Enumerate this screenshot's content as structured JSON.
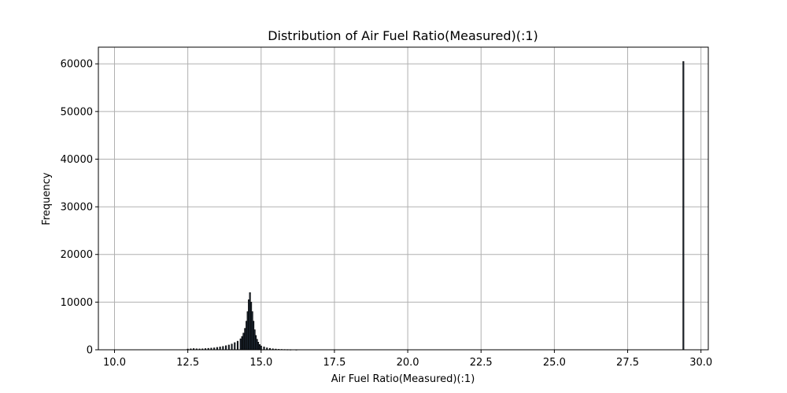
{
  "chart_data": {
    "type": "bar",
    "title": "Distribution of Air Fuel Ratio(Measured)(:1)",
    "xlabel": "Air Fuel Ratio(Measured)(:1)",
    "ylabel": "Frequency",
    "xlim": [
      9.45,
      30.25
    ],
    "ylim": [
      0,
      63500
    ],
    "xticks": [
      10.0,
      12.5,
      15.0,
      17.5,
      20.0,
      22.5,
      25.0,
      27.5,
      30.0
    ],
    "xtick_labels": [
      "10.0",
      "12.5",
      "15.0",
      "17.5",
      "20.0",
      "22.5",
      "25.0",
      "27.5",
      "30.0"
    ],
    "yticks": [
      0,
      10000,
      20000,
      30000,
      40000,
      50000,
      60000
    ],
    "ytick_labels": [
      "0",
      "10000",
      "20000",
      "30000",
      "40000",
      "50000",
      "60000"
    ],
    "grid": true,
    "bar_color": "#1f2a36",
    "bin_width": 0.04,
    "x": [
      12.5,
      12.6,
      12.7,
      12.8,
      12.9,
      13.0,
      13.1,
      13.2,
      13.3,
      13.4,
      13.5,
      13.6,
      13.7,
      13.8,
      13.9,
      14.0,
      14.1,
      14.2,
      14.3,
      14.35,
      14.4,
      14.45,
      14.5,
      14.54,
      14.58,
      14.62,
      14.66,
      14.7,
      14.74,
      14.78,
      14.82,
      14.86,
      14.9,
      14.95,
      15.0,
      15.1,
      15.2,
      15.3,
      15.4,
      15.5,
      15.6,
      15.7,
      15.8,
      15.9,
      16.0,
      16.2,
      29.4
    ],
    "values": [
      150,
      200,
      250,
      200,
      180,
      200,
      250,
      300,
      350,
      400,
      500,
      600,
      700,
      850,
      1000,
      1200,
      1500,
      1800,
      2300,
      2800,
      3500,
      4500,
      6000,
      8000,
      10500,
      12000,
      10000,
      8000,
      6000,
      4200,
      3000,
      2200,
      1600,
      1100,
      800,
      600,
      400,
      300,
      200,
      150,
      100,
      80,
      60,
      50,
      40,
      30,
      60500
    ]
  }
}
